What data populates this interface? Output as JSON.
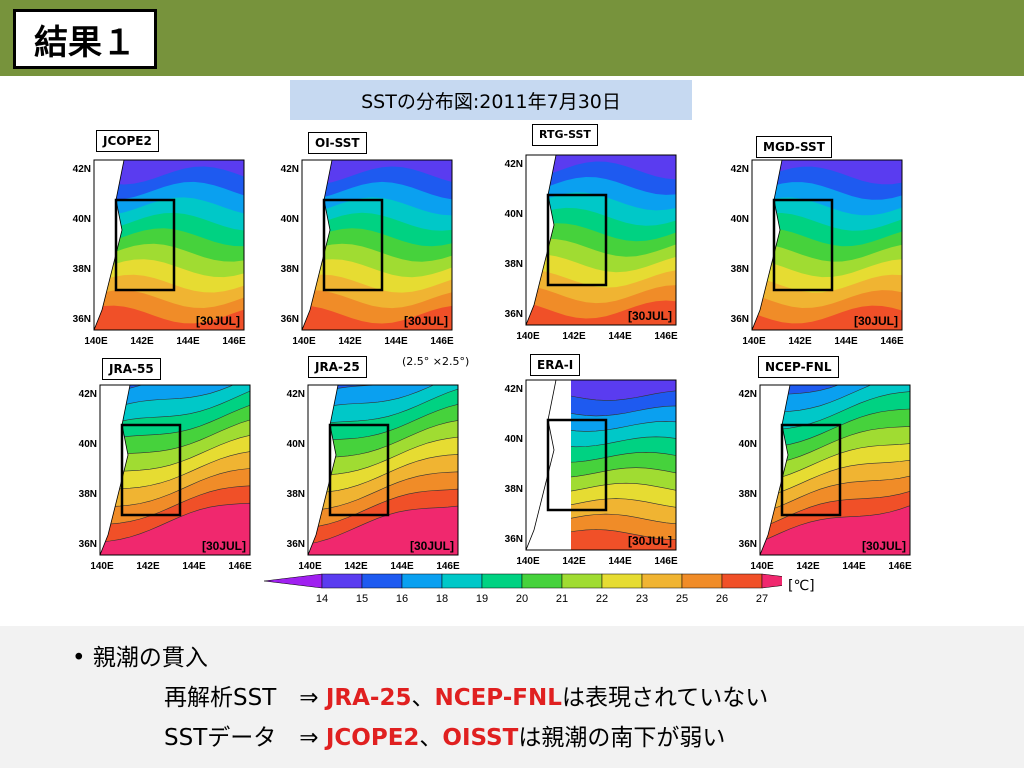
{
  "slide": {
    "title": "結果１",
    "subtitle": "SSTの分布図:2011年7月30日"
  },
  "panels": [
    {
      "id": "jcope2",
      "label": "JCOPE2",
      "date": "[30JUL]",
      "style": "fine"
    },
    {
      "id": "oisst",
      "label": "OI-SST",
      "date": "[30JUL]",
      "style": "fine"
    },
    {
      "id": "rtgsst",
      "label": "RTG-SST",
      "date": "[30JUL]",
      "style": "fine"
    },
    {
      "id": "mgdsst",
      "label": "MGD-SST",
      "date": "[30JUL]",
      "style": "fine"
    },
    {
      "id": "jra55",
      "label": "JRA-55",
      "date": "[30JUL]",
      "style": "smooth"
    },
    {
      "id": "jra25",
      "label": "JRA-25",
      "date": "[30JUL]",
      "style": "smooth"
    },
    {
      "id": "erai",
      "label": "ERA-I",
      "date": "[30JUL]",
      "style": "erai"
    },
    {
      "id": "ncepfnl",
      "label": "NCEP-FNL",
      "date": "[30JUL]",
      "style": "smooth"
    }
  ],
  "axes": {
    "x_ticks": [
      "140E",
      "142E",
      "144E",
      "146E"
    ],
    "y_ticks": [
      "42N",
      "40N",
      "38N",
      "36N"
    ]
  },
  "note": "(2.5°  ×2.5°)",
  "legend": {
    "ticks": [
      "14",
      "15",
      "16",
      "18",
      "19",
      "20",
      "21",
      "22",
      "23",
      "25",
      "26",
      "27"
    ],
    "colors": [
      "#a020f0",
      "#5a3cf0",
      "#1e5af0",
      "#0aa0f0",
      "#00c8c8",
      "#00d282",
      "#46d23c",
      "#a0dc32",
      "#e6dc32",
      "#f0b432",
      "#f08c28",
      "#f05028",
      "#f0286e"
    ],
    "unit": "[℃]"
  },
  "bullets": {
    "line1": "• 親潮の貫入",
    "line2_prefix": "再解析SST　⇒",
    "line2_red1": "JRA-25",
    "line2_sep": "、",
    "line2_red2": "NCEP-FNL",
    "line2_suffix": "は表現されていない",
    "line3_prefix": "SSTデータ　⇒",
    "line3_red1": "JCOPE2",
    "line3_sep": "、",
    "line3_red2": "OISST",
    "line3_suffix": "は親潮の南下が弱い"
  }
}
